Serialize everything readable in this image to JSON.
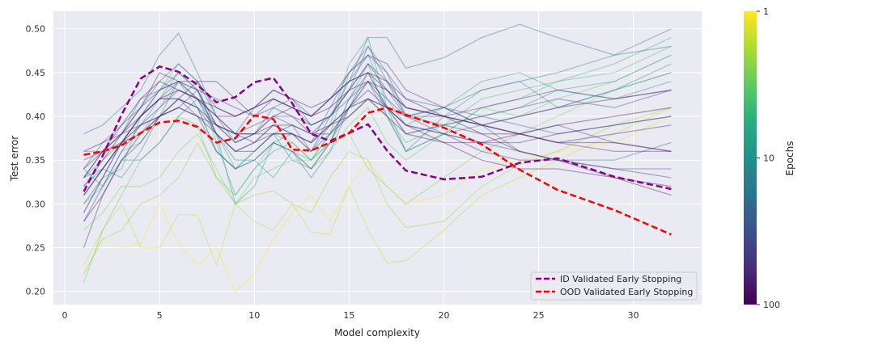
{
  "chart_data": {
    "type": "line",
    "title": "",
    "xlabel": "Model complexity",
    "ylabel": "Test error",
    "xlim": [
      -0.6,
      33.6
    ],
    "ylim": [
      0.185,
      0.52
    ],
    "xticks": [
      0,
      5,
      10,
      15,
      20,
      25,
      30
    ],
    "yticks": [
      0.2,
      0.25,
      0.3,
      0.35,
      0.4,
      0.45,
      0.5
    ],
    "grid": true,
    "legend_position": "lower-right",
    "background_color": "#eaeaf2",
    "colorbar": {
      "label": "Epochs",
      "scale": "log",
      "colormap": "viridis",
      "ticks": [
        1,
        10,
        100
      ],
      "tick_labels": [
        "1",
        "10",
        "100"
      ]
    },
    "background_curves": {
      "x": [
        1,
        2,
        3,
        4,
        5,
        6,
        7,
        8,
        9,
        10,
        11,
        12,
        13,
        14,
        15,
        16,
        17,
        18,
        20,
        22,
        24,
        26,
        29,
        32
      ],
      "curves": [
        {
          "epochs": 1,
          "y": [
            0.22,
            0.26,
            0.25,
            0.255,
            0.3,
            0.255,
            0.23,
            0.25,
            0.2,
            0.22,
            0.26,
            0.29,
            0.31,
            0.28,
            0.32,
            0.35,
            0.32,
            0.3,
            0.31,
            0.34,
            0.35,
            0.36,
            0.37,
            0.4
          ]
        },
        {
          "epochs": 1.5,
          "y": [
            0.23,
            0.27,
            0.3,
            0.25,
            0.25,
            0.288,
            0.287,
            0.23,
            0.3,
            0.28,
            0.27,
            0.3,
            0.268,
            0.265,
            0.32,
            0.27,
            0.233,
            0.235,
            0.27,
            0.31,
            0.33,
            0.35,
            0.38,
            0.41
          ]
        },
        {
          "epochs": 2,
          "y": [
            0.22,
            0.26,
            0.27,
            0.3,
            0.31,
            0.33,
            0.37,
            0.33,
            0.3,
            0.31,
            0.315,
            0.3,
            0.29,
            0.33,
            0.36,
            0.35,
            0.3,
            0.273,
            0.28,
            0.32,
            0.345,
            0.36,
            0.39,
            0.41
          ]
        },
        {
          "epochs": 2.5,
          "y": [
            0.27,
            0.29,
            0.32,
            0.32,
            0.33,
            0.36,
            0.38,
            0.34,
            0.3,
            0.33,
            0.34,
            0.35,
            0.35,
            0.37,
            0.38,
            0.34,
            0.32,
            0.3,
            0.33,
            0.36,
            0.38,
            0.4,
            0.43,
            0.45
          ]
        },
        {
          "epochs": 3,
          "y": [
            0.21,
            0.27,
            0.31,
            0.35,
            0.37,
            0.4,
            0.39,
            0.33,
            0.31,
            0.34,
            0.37,
            0.36,
            0.34,
            0.36,
            0.39,
            0.41,
            0.37,
            0.35,
            0.38,
            0.41,
            0.4,
            0.42,
            0.44,
            0.47
          ]
        },
        {
          "epochs": 4,
          "y": [
            0.3,
            0.32,
            0.36,
            0.37,
            0.4,
            0.42,
            0.41,
            0.36,
            0.34,
            0.36,
            0.38,
            0.37,
            0.35,
            0.38,
            0.41,
            0.42,
            0.4,
            0.37,
            0.39,
            0.42,
            0.43,
            0.44,
            0.45,
            0.48
          ]
        },
        {
          "epochs": 5,
          "y": [
            0.29,
            0.33,
            0.34,
            0.4,
            0.43,
            0.46,
            0.44,
            0.37,
            0.31,
            0.34,
            0.36,
            0.37,
            0.35,
            0.37,
            0.42,
            0.46,
            0.4,
            0.36,
            0.38,
            0.41,
            0.42,
            0.44,
            0.46,
            0.49
          ]
        },
        {
          "epochs": 6,
          "y": [
            0.31,
            0.34,
            0.37,
            0.38,
            0.41,
            0.44,
            0.42,
            0.38,
            0.34,
            0.35,
            0.33,
            0.36,
            0.35,
            0.38,
            0.45,
            0.47,
            0.42,
            0.39,
            0.41,
            0.44,
            0.45,
            0.43,
            0.44,
            0.47
          ]
        },
        {
          "epochs": 8,
          "y": [
            0.33,
            0.35,
            0.37,
            0.39,
            0.42,
            0.45,
            0.43,
            0.38,
            0.3,
            0.32,
            0.37,
            0.38,
            0.36,
            0.39,
            0.46,
            0.49,
            0.41,
            0.36,
            0.4,
            0.43,
            0.44,
            0.41,
            0.43,
            0.46
          ]
        },
        {
          "epochs": 10,
          "y": [
            0.33,
            0.34,
            0.33,
            0.36,
            0.4,
            0.44,
            0.41,
            0.36,
            0.34,
            0.36,
            0.38,
            0.35,
            0.34,
            0.37,
            0.42,
            0.45,
            0.41,
            0.38,
            0.39,
            0.4,
            0.41,
            0.43,
            0.42,
            0.44
          ]
        },
        {
          "epochs": 13,
          "y": [
            0.34,
            0.32,
            0.35,
            0.35,
            0.37,
            0.4,
            0.42,
            0.38,
            0.35,
            0.35,
            0.37,
            0.36,
            0.33,
            0.36,
            0.41,
            0.44,
            0.4,
            0.36,
            0.38,
            0.39,
            0.4,
            0.41,
            0.43,
            0.45
          ]
        },
        {
          "epochs": 16,
          "y": [
            0.36,
            0.36,
            0.38,
            0.42,
            0.43,
            0.45,
            0.43,
            0.39,
            0.37,
            0.38,
            0.41,
            0.42,
            0.39,
            0.4,
            0.43,
            0.48,
            0.45,
            0.4,
            0.41,
            0.43,
            0.44,
            0.45,
            0.47,
            0.48
          ]
        },
        {
          "epochs": 20,
          "y": [
            0.38,
            0.39,
            0.41,
            0.43,
            0.47,
            0.495,
            0.45,
            0.4,
            0.37,
            0.38,
            0.4,
            0.39,
            0.36,
            0.4,
            0.44,
            0.49,
            0.49,
            0.455,
            0.467,
            0.49,
            0.505,
            0.49,
            0.47,
            0.5
          ]
        },
        {
          "epochs": 25,
          "y": [
            0.32,
            0.34,
            0.37,
            0.4,
            0.42,
            0.44,
            0.43,
            0.38,
            0.36,
            0.37,
            0.39,
            0.38,
            0.37,
            0.41,
            0.45,
            0.48,
            0.44,
            0.4,
            0.41,
            0.39,
            0.36,
            0.35,
            0.35,
            0.37
          ]
        },
        {
          "epochs": 30,
          "y": [
            0.34,
            0.37,
            0.39,
            0.41,
            0.44,
            0.46,
            0.44,
            0.4,
            0.38,
            0.41,
            0.43,
            0.42,
            0.4,
            0.42,
            0.44,
            0.47,
            0.45,
            0.42,
            0.41,
            0.4,
            0.39,
            0.38,
            0.39,
            0.4
          ]
        },
        {
          "epochs": 35,
          "y": [
            0.3,
            0.33,
            0.37,
            0.4,
            0.42,
            0.42,
            0.4,
            0.36,
            0.34,
            0.35,
            0.37,
            0.36,
            0.34,
            0.37,
            0.41,
            0.45,
            0.41,
            0.38,
            0.39,
            0.4,
            0.41,
            0.42,
            0.41,
            0.43
          ]
        },
        {
          "epochs": 40,
          "y": [
            0.33,
            0.36,
            0.38,
            0.39,
            0.4,
            0.41,
            0.43,
            0.39,
            0.37,
            0.38,
            0.38,
            0.39,
            0.38,
            0.4,
            0.43,
            0.46,
            0.43,
            0.4,
            0.38,
            0.37,
            0.36,
            0.35,
            0.34,
            0.34
          ]
        },
        {
          "epochs": 45,
          "y": [
            0.28,
            0.32,
            0.36,
            0.39,
            0.41,
            0.43,
            0.42,
            0.39,
            0.38,
            0.39,
            0.4,
            0.4,
            0.39,
            0.4,
            0.42,
            0.44,
            0.42,
            0.4,
            0.4,
            0.41,
            0.42,
            0.43,
            0.42,
            0.43
          ]
        },
        {
          "epochs": 50,
          "y": [
            0.31,
            0.34,
            0.37,
            0.4,
            0.43,
            0.44,
            0.43,
            0.42,
            0.41,
            0.4,
            0.42,
            0.41,
            0.39,
            0.4,
            0.43,
            0.46,
            0.44,
            0.41,
            0.4,
            0.39,
            0.38,
            0.39,
            0.37,
            0.36
          ]
        },
        {
          "epochs": 55,
          "y": [
            0.25,
            0.31,
            0.35,
            0.37,
            0.4,
            0.42,
            0.41,
            0.38,
            0.36,
            0.37,
            0.39,
            0.38,
            0.36,
            0.38,
            0.41,
            0.44,
            0.41,
            0.39,
            0.38,
            0.36,
            0.35,
            0.35,
            0.34,
            0.33
          ]
        },
        {
          "epochs": 60,
          "y": [
            0.34,
            0.36,
            0.38,
            0.41,
            0.43,
            0.44,
            0.44,
            0.41,
            0.4,
            0.41,
            0.42,
            0.41,
            0.4,
            0.42,
            0.45,
            0.47,
            0.46,
            0.43,
            0.41,
            0.39,
            0.38,
            0.37,
            0.36,
            0.36
          ]
        },
        {
          "epochs": 65,
          "y": [
            0.29,
            0.33,
            0.37,
            0.39,
            0.4,
            0.42,
            0.44,
            0.44,
            0.42,
            0.4,
            0.41,
            0.4,
            0.38,
            0.38,
            0.4,
            0.42,
            0.41,
            0.39,
            0.38,
            0.37,
            0.37,
            0.38,
            0.39,
            0.4
          ]
        },
        {
          "epochs": 70,
          "y": [
            0.35,
            0.36,
            0.37,
            0.38,
            0.4,
            0.41,
            0.4,
            0.39,
            0.38,
            0.37,
            0.38,
            0.38,
            0.37,
            0.39,
            0.4,
            0.42,
            0.41,
            0.4,
            0.39,
            0.38,
            0.38,
            0.37,
            0.38,
            0.39
          ]
        },
        {
          "epochs": 75,
          "y": [
            0.32,
            0.35,
            0.38,
            0.41,
            0.45,
            0.44,
            0.42,
            0.4,
            0.38,
            0.38,
            0.4,
            0.41,
            0.4,
            0.42,
            0.44,
            0.45,
            0.43,
            0.41,
            0.4,
            0.39,
            0.4,
            0.41,
            0.42,
            0.43
          ]
        },
        {
          "epochs": 80,
          "y": [
            0.28,
            0.31,
            0.35,
            0.38,
            0.4,
            0.41,
            0.4,
            0.38,
            0.36,
            0.36,
            0.38,
            0.38,
            0.37,
            0.39,
            0.41,
            0.43,
            0.41,
            0.39,
            0.37,
            0.35,
            0.34,
            0.34,
            0.33,
            0.32
          ]
        },
        {
          "epochs": 85,
          "y": [
            0.33,
            0.36,
            0.39,
            0.42,
            0.44,
            0.43,
            0.42,
            0.4,
            0.4,
            0.41,
            0.43,
            0.42,
            0.41,
            0.42,
            0.44,
            0.45,
            0.44,
            0.42,
            0.4,
            0.38,
            0.36,
            0.35,
            0.33,
            0.31
          ]
        },
        {
          "epochs": 90,
          "y": [
            0.36,
            0.37,
            0.38,
            0.4,
            0.42,
            0.43,
            0.42,
            0.41,
            0.4,
            0.41,
            0.42,
            0.41,
            0.4,
            0.41,
            0.43,
            0.44,
            0.43,
            0.41,
            0.4,
            0.39,
            0.38,
            0.37,
            0.37,
            0.36
          ]
        },
        {
          "epochs": 95,
          "y": [
            0.31,
            0.34,
            0.37,
            0.4,
            0.42,
            0.42,
            0.41,
            0.39,
            0.38,
            0.38,
            0.39,
            0.39,
            0.38,
            0.39,
            0.41,
            0.42,
            0.4,
            0.38,
            0.37,
            0.37,
            0.38,
            0.39,
            0.4,
            0.41
          ]
        }
      ]
    },
    "series": [
      {
        "name": "ID Validated Early Stopping",
        "color": "#8b008b",
        "style": "dashed",
        "x": [
          1,
          2,
          3,
          4,
          5,
          6,
          7,
          8,
          9,
          10,
          11,
          12,
          13,
          14,
          15,
          16,
          17,
          18,
          20,
          22,
          24,
          26,
          29,
          32
        ],
        "y": [
          0.314,
          0.355,
          0.402,
          0.443,
          0.457,
          0.451,
          0.436,
          0.416,
          0.422,
          0.439,
          0.444,
          0.415,
          0.38,
          0.372,
          0.381,
          0.391,
          0.361,
          0.338,
          0.328,
          0.331,
          0.347,
          0.352,
          0.331,
          0.317
        ]
      },
      {
        "name": "OOD Validated Early Stopping",
        "color": "#ff0000",
        "style": "dashed",
        "x": [
          1,
          2,
          3,
          4,
          5,
          6,
          7,
          8,
          9,
          10,
          11,
          12,
          13,
          14,
          15,
          16,
          17,
          18,
          20,
          22,
          24,
          26,
          29,
          32
        ],
        "y": [
          0.356,
          0.36,
          0.367,
          0.381,
          0.393,
          0.395,
          0.388,
          0.37,
          0.375,
          0.401,
          0.397,
          0.362,
          0.361,
          0.37,
          0.381,
          0.404,
          0.41,
          0.402,
          0.387,
          0.368,
          0.339,
          0.316,
          0.293,
          0.265
        ]
      }
    ]
  }
}
